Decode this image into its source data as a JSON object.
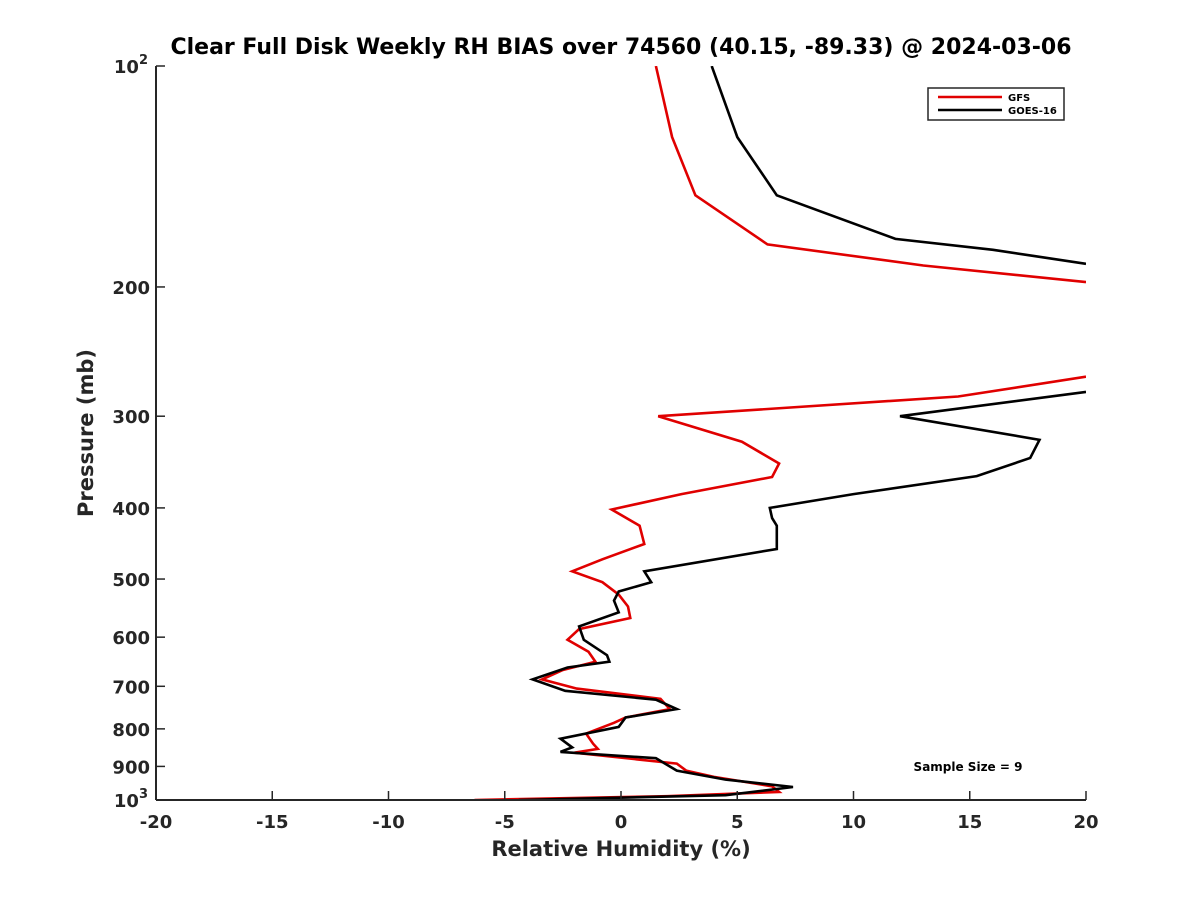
{
  "chart_data": {
    "type": "line",
    "title": "Clear Full Disk Weekly RH BIAS over 74560 (40.15, -89.33) @ 2024-03-06",
    "xlabel": "Relative Humidity (%)",
    "ylabel": "Pressure (mb)",
    "xlim": [
      -20,
      20
    ],
    "ylim": [
      100,
      1000
    ],
    "y_scale": "log",
    "y_reversed": true,
    "grid": false,
    "legend_position": "top-right",
    "x_ticks": [
      "-20",
      "-15",
      "-10",
      "-5",
      "0",
      "5",
      "10",
      "15",
      "20"
    ],
    "y_ticks": [
      {
        "value": 100,
        "label": "10",
        "sup": "2"
      },
      {
        "value": 200,
        "label": "200",
        "sup": ""
      },
      {
        "value": 300,
        "label": "300",
        "sup": ""
      },
      {
        "value": 400,
        "label": "400",
        "sup": ""
      },
      {
        "value": 500,
        "label": "500",
        "sup": ""
      },
      {
        "value": 600,
        "label": "600",
        "sup": ""
      },
      {
        "value": 700,
        "label": "700",
        "sup": ""
      },
      {
        "value": 800,
        "label": "800",
        "sup": ""
      },
      {
        "value": 900,
        "label": "900",
        "sup": ""
      },
      {
        "value": 1000,
        "label": "10",
        "sup": "3"
      }
    ],
    "annotation": "Sample Size = 9",
    "series": [
      {
        "name": "GFS",
        "color": "#e00000",
        "segments": [
          [
            {
              "x": 1.5,
              "y": 100
            },
            {
              "x": 2.2,
              "y": 125
            },
            {
              "x": 3.2,
              "y": 150
            },
            {
              "x": 6.3,
              "y": 175
            },
            {
              "x": 13.0,
              "y": 187
            },
            {
              "x": 20.0,
              "y": 197
            }
          ],
          [
            {
              "x": 20.0,
              "y": 265
            },
            {
              "x": 14.5,
              "y": 282
            },
            {
              "x": 1.6,
              "y": 300
            },
            {
              "x": 5.2,
              "y": 325
            },
            {
              "x": 6.8,
              "y": 348
            },
            {
              "x": 6.5,
              "y": 363
            },
            {
              "x": 2.6,
              "y": 383
            },
            {
              "x": -0.4,
              "y": 402
            },
            {
              "x": 0.8,
              "y": 423
            },
            {
              "x": 1.0,
              "y": 448
            },
            {
              "x": -0.8,
              "y": 470
            },
            {
              "x": -2.1,
              "y": 488
            },
            {
              "x": -0.8,
              "y": 505
            },
            {
              "x": -0.1,
              "y": 525
            },
            {
              "x": 0.3,
              "y": 545
            },
            {
              "x": 0.4,
              "y": 565
            },
            {
              "x": -1.8,
              "y": 585
            },
            {
              "x": -2.3,
              "y": 605
            },
            {
              "x": -1.4,
              "y": 628
            },
            {
              "x": -1.1,
              "y": 648
            },
            {
              "x": -2.5,
              "y": 665
            },
            {
              "x": -3.4,
              "y": 685
            },
            {
              "x": -1.9,
              "y": 705
            },
            {
              "x": 1.7,
              "y": 728
            },
            {
              "x": 2.1,
              "y": 752
            },
            {
              "x": 0.2,
              "y": 772
            },
            {
              "x": -0.3,
              "y": 785
            },
            {
              "x": -1.5,
              "y": 812
            },
            {
              "x": -1.2,
              "y": 838
            },
            {
              "x": -1.0,
              "y": 852
            },
            {
              "x": -2.0,
              "y": 862
            },
            {
              "x": 2.4,
              "y": 892
            },
            {
              "x": 2.8,
              "y": 912
            },
            {
              "x": 4.0,
              "y": 930
            },
            {
              "x": 6.5,
              "y": 958
            },
            {
              "x": 6.8,
              "y": 975
            },
            {
              "x": 2.0,
              "y": 988
            },
            {
              "x": -6.3,
              "y": 1000
            }
          ]
        ]
      },
      {
        "name": "GOES-16",
        "color": "#000000",
        "segments": [
          [
            {
              "x": 3.9,
              "y": 100
            },
            {
              "x": 5.0,
              "y": 125
            },
            {
              "x": 6.7,
              "y": 150
            },
            {
              "x": 11.8,
              "y": 172
            },
            {
              "x": 16.0,
              "y": 178
            },
            {
              "x": 20.0,
              "y": 186
            }
          ],
          [
            {
              "x": 20.0,
              "y": 278
            },
            {
              "x": 12.0,
              "y": 300
            },
            {
              "x": 18.0,
              "y": 323
            },
            {
              "x": 17.6,
              "y": 342
            },
            {
              "x": 15.3,
              "y": 362
            },
            {
              "x": 10.0,
              "y": 383
            },
            {
              "x": 6.4,
              "y": 400
            },
            {
              "x": 6.5,
              "y": 413
            },
            {
              "x": 6.7,
              "y": 423
            },
            {
              "x": 6.7,
              "y": 455
            },
            {
              "x": 1.0,
              "y": 488
            },
            {
              "x": 1.3,
              "y": 505
            },
            {
              "x": -0.1,
              "y": 520
            },
            {
              "x": -0.3,
              "y": 535
            },
            {
              "x": -0.1,
              "y": 555
            },
            {
              "x": -1.8,
              "y": 580
            },
            {
              "x": -1.6,
              "y": 605
            },
            {
              "x": -0.6,
              "y": 635
            },
            {
              "x": -0.5,
              "y": 648
            },
            {
              "x": -2.3,
              "y": 660
            },
            {
              "x": -3.8,
              "y": 685
            },
            {
              "x": -2.4,
              "y": 710
            },
            {
              "x": 1.5,
              "y": 730
            },
            {
              "x": 2.4,
              "y": 752
            },
            {
              "x": 0.2,
              "y": 772
            },
            {
              "x": -0.1,
              "y": 795
            },
            {
              "x": -2.6,
              "y": 825
            },
            {
              "x": -2.1,
              "y": 848
            },
            {
              "x": -2.6,
              "y": 860
            },
            {
              "x": 1.5,
              "y": 877
            },
            {
              "x": 2.4,
              "y": 912
            },
            {
              "x": 4.5,
              "y": 938
            },
            {
              "x": 7.4,
              "y": 960
            },
            {
              "x": 4.5,
              "y": 985
            },
            {
              "x": -4.4,
              "y": 1000
            }
          ]
        ]
      }
    ]
  }
}
